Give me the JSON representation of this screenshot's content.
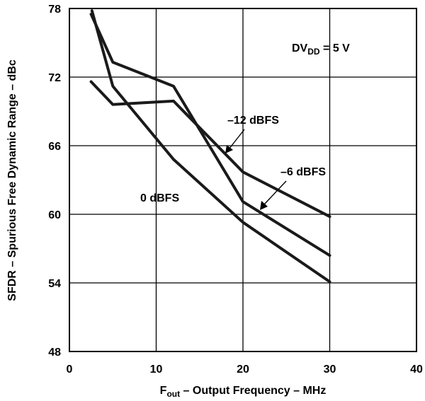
{
  "chart_data": {
    "type": "line",
    "xlabel_main": "F",
    "xlabel_sub": "out",
    "xlabel_rest": " – Output Frequency – MHz",
    "ylabel": "SFDR – Spurious Free Dynamic Range – dBc",
    "xlim": [
      0,
      40
    ],
    "ylim": [
      48,
      78
    ],
    "x_ticks": [
      0,
      10,
      20,
      30,
      40
    ],
    "y_ticks": [
      48,
      54,
      60,
      66,
      72,
      78
    ],
    "grid": true,
    "annotation": {
      "main": "DV",
      "sub": "DD",
      "rest": " = 5 V"
    },
    "series": [
      {
        "name": "0 dBFS",
        "x": [
          2.6,
          5,
          12,
          20,
          30
        ],
        "y": [
          77.8,
          71.2,
          64.8,
          59.3,
          54.1
        ]
      },
      {
        "name": "–6 dBFS",
        "x": [
          2.5,
          5,
          12,
          20,
          30
        ],
        "y": [
          77.5,
          73.3,
          71.2,
          61.1,
          56.4
        ]
      },
      {
        "name": "–12 dBFS",
        "x": [
          2.5,
          5,
          12,
          20,
          30
        ],
        "y": [
          71.6,
          69.6,
          69.9,
          63.7,
          59.8
        ]
      }
    ]
  }
}
